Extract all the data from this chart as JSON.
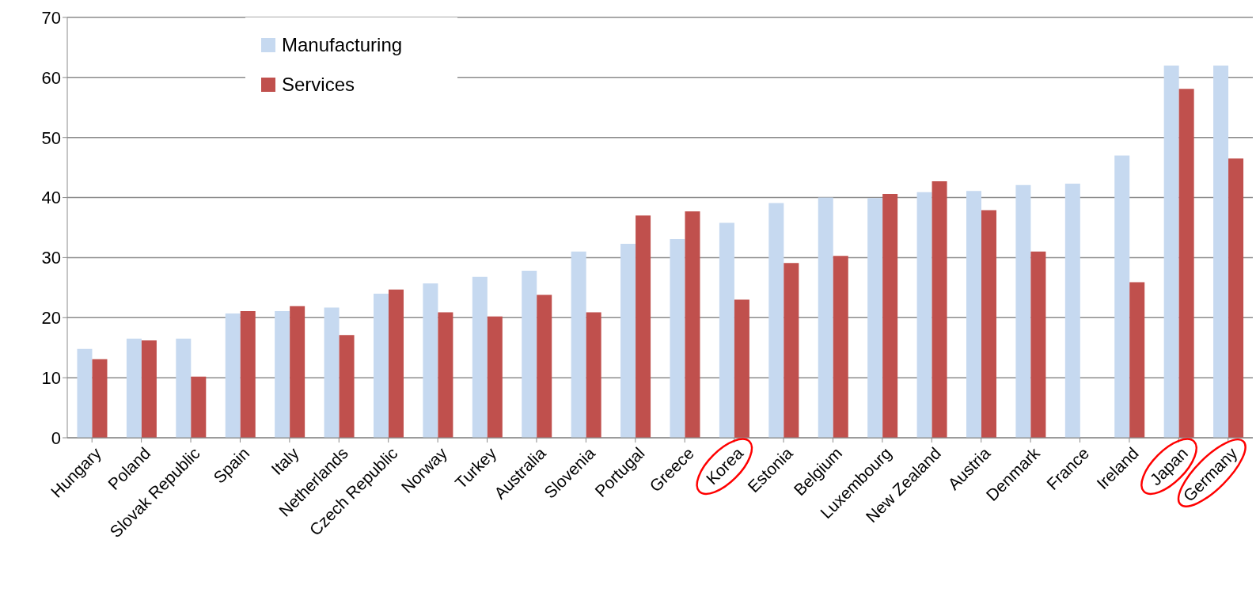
{
  "chart_data": {
    "type": "bar",
    "categories": [
      "Hungary",
      "Poland",
      "Slovak Republic",
      "Spain",
      "Italy",
      "Netherlands",
      "Czech Republic",
      "Norway",
      "Turkey",
      "Australia",
      "Slovenia",
      "Portugal",
      "Greece",
      "Korea",
      "Estonia",
      "Belgium",
      "Luxembourg",
      "New Zealand",
      "Austria",
      "Denmark",
      "France",
      "Ireland",
      "Japan",
      "Germany"
    ],
    "series": [
      {
        "name": "Manufacturing",
        "color": "#c6d9f0",
        "values": [
          14.8,
          16.5,
          16.5,
          20.7,
          21.1,
          21.7,
          24.0,
          25.7,
          26.8,
          27.8,
          31.0,
          32.3,
          33.1,
          35.8,
          39.1,
          40.0,
          39.9,
          40.9,
          41.1,
          42.1,
          42.3,
          47.0,
          62.0,
          62.0
        ]
      },
      {
        "name": "Services",
        "color": "#c0504d",
        "values": [
          13.1,
          16.2,
          10.2,
          21.1,
          21.9,
          17.1,
          24.7,
          20.9,
          20.2,
          23.8,
          20.9,
          37.0,
          37.7,
          23.0,
          29.1,
          30.3,
          40.6,
          42.7,
          37.9,
          31.0,
          null,
          25.9,
          58.1,
          46.5
        ]
      }
    ],
    "ylim": [
      0,
      70
    ],
    "yticks": [
      0,
      10,
      20,
      30,
      40,
      50,
      60,
      70
    ],
    "grid": "y",
    "legend": "top left"
  }
}
